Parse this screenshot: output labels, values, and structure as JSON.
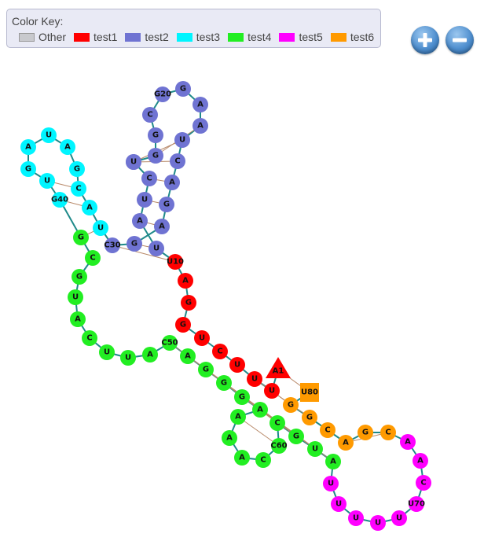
{
  "legend": {
    "title": "Color Key:",
    "items": [
      {
        "label": "Other",
        "color": "#c8c9cd"
      },
      {
        "label": "test1",
        "color": "#ff0000"
      },
      {
        "label": "test2",
        "color": "#6f73d2"
      },
      {
        "label": "test3",
        "color": "#00f5ff"
      },
      {
        "label": "test4",
        "color": "#22ee22"
      },
      {
        "label": "test5",
        "color": "#ff00ff"
      },
      {
        "label": "test6",
        "color": "#ff9a00"
      }
    ]
  },
  "controls": {
    "zoom_in_icon": "plus-icon",
    "zoom_out_icon": "minus-icon"
  },
  "diagram": {
    "nucleotides": [
      {
        "letter": "A",
        "label": "A1",
        "color": "#ff0000",
        "shape": "triangle"
      },
      {
        "letter": "U",
        "color": "#ff0000"
      },
      {
        "letter": "U",
        "color": "#ff0000"
      },
      {
        "letter": "U",
        "color": "#ff0000"
      },
      {
        "letter": "C",
        "color": "#ff0000"
      },
      {
        "letter": "U",
        "color": "#ff0000"
      },
      {
        "letter": "G",
        "color": "#ff0000"
      },
      {
        "letter": "G",
        "color": "#ff0000"
      },
      {
        "letter": "A",
        "color": "#ff0000"
      },
      {
        "letter": "U",
        "label": "U10",
        "color": "#ff0000"
      },
      {
        "letter": "U",
        "color": "#6f73d2"
      },
      {
        "letter": "A",
        "color": "#6f73d2"
      },
      {
        "letter": "U",
        "color": "#6f73d2"
      },
      {
        "letter": "C",
        "color": "#6f73d2"
      },
      {
        "letter": "U",
        "color": "#6f73d2"
      },
      {
        "letter": "U",
        "color": "#6f73d2"
      },
      {
        "letter": "G",
        "color": "#6f73d2"
      },
      {
        "letter": "G",
        "color": "#6f73d2"
      },
      {
        "letter": "C",
        "color": "#6f73d2"
      },
      {
        "letter": "G",
        "label": "G20",
        "color": "#6f73d2"
      },
      {
        "letter": "G",
        "color": "#6f73d2"
      },
      {
        "letter": "A",
        "color": "#6f73d2"
      },
      {
        "letter": "A",
        "color": "#6f73d2"
      },
      {
        "letter": "U",
        "color": "#6f73d2"
      },
      {
        "letter": "C",
        "color": "#6f73d2"
      },
      {
        "letter": "A",
        "color": "#6f73d2"
      },
      {
        "letter": "G",
        "color": "#6f73d2"
      },
      {
        "letter": "A",
        "color": "#6f73d2"
      },
      {
        "letter": "G",
        "color": "#6f73d2"
      },
      {
        "letter": "C",
        "label": "C30",
        "color": "#6f73d2"
      },
      {
        "letter": "U",
        "color": "#00f5ff"
      },
      {
        "letter": "A",
        "color": "#00f5ff"
      },
      {
        "letter": "C",
        "color": "#00f5ff"
      },
      {
        "letter": "G",
        "color": "#00f5ff"
      },
      {
        "letter": "A",
        "color": "#00f5ff"
      },
      {
        "letter": "U",
        "color": "#00f5ff"
      },
      {
        "letter": "A",
        "color": "#00f5ff"
      },
      {
        "letter": "G",
        "color": "#00f5ff"
      },
      {
        "letter": "U",
        "color": "#00f5ff"
      },
      {
        "letter": "G",
        "label": "G40",
        "color": "#00f5ff"
      },
      {
        "letter": "G",
        "color": "#22ee22"
      },
      {
        "letter": "C",
        "color": "#22ee22"
      },
      {
        "letter": "G",
        "color": "#22ee22"
      },
      {
        "letter": "U",
        "color": "#22ee22"
      },
      {
        "letter": "A",
        "color": "#22ee22"
      },
      {
        "letter": "C",
        "color": "#22ee22"
      },
      {
        "letter": "U",
        "color": "#22ee22"
      },
      {
        "letter": "U",
        "color": "#22ee22"
      },
      {
        "letter": "A",
        "color": "#22ee22"
      },
      {
        "letter": "C",
        "label": "C50",
        "color": "#22ee22"
      },
      {
        "letter": "A",
        "color": "#22ee22"
      },
      {
        "letter": "G",
        "color": "#22ee22"
      },
      {
        "letter": "G",
        "color": "#22ee22"
      },
      {
        "letter": "G",
        "color": "#22ee22"
      },
      {
        "letter": "A",
        "color": "#22ee22"
      },
      {
        "letter": "A",
        "color": "#22ee22"
      },
      {
        "letter": "A",
        "color": "#22ee22"
      },
      {
        "letter": "A",
        "color": "#22ee22"
      },
      {
        "letter": "C",
        "color": "#22ee22"
      },
      {
        "letter": "C",
        "label": "C60",
        "color": "#22ee22"
      },
      {
        "letter": "C",
        "color": "#22ee22"
      },
      {
        "letter": "G",
        "color": "#22ee22"
      },
      {
        "letter": "U",
        "color": "#22ee22"
      },
      {
        "letter": "A",
        "color": "#22ee22"
      },
      {
        "letter": "U",
        "color": "#ff00ff"
      },
      {
        "letter": "U",
        "color": "#ff00ff"
      },
      {
        "letter": "U",
        "color": "#ff00ff"
      },
      {
        "letter": "U",
        "color": "#ff00ff"
      },
      {
        "letter": "U",
        "color": "#ff00ff"
      },
      {
        "letter": "U",
        "label": "U70",
        "color": "#ff00ff"
      },
      {
        "letter": "C",
        "color": "#ff00ff"
      },
      {
        "letter": "A",
        "color": "#ff00ff"
      },
      {
        "letter": "A",
        "color": "#ff00ff"
      },
      {
        "letter": "C",
        "color": "#ff9a00"
      },
      {
        "letter": "G",
        "color": "#ff9a00"
      },
      {
        "letter": "A",
        "color": "#ff9a00"
      },
      {
        "letter": "C",
        "color": "#ff9a00"
      },
      {
        "letter": "G",
        "color": "#ff9a00"
      },
      {
        "letter": "G",
        "color": "#ff9a00"
      },
      {
        "letter": "U",
        "label": "U80",
        "color": "#ff9a00",
        "shape": "square"
      }
    ],
    "pairs": [
      [
        1,
        80
      ],
      [
        2,
        79
      ],
      [
        3,
        78
      ],
      [
        10,
        30
      ],
      [
        11,
        29
      ],
      [
        12,
        28
      ],
      [
        13,
        27
      ],
      [
        14,
        26
      ],
      [
        15,
        25
      ],
      [
        16,
        24
      ],
      [
        17,
        23
      ],
      [
        31,
        41
      ],
      [
        32,
        40
      ],
      [
        33,
        39
      ],
      [
        50,
        64
      ],
      [
        51,
        63
      ],
      [
        52,
        62
      ],
      [
        53,
        61
      ],
      [
        56,
        60
      ],
      [
        74,
        76
      ]
    ]
  }
}
